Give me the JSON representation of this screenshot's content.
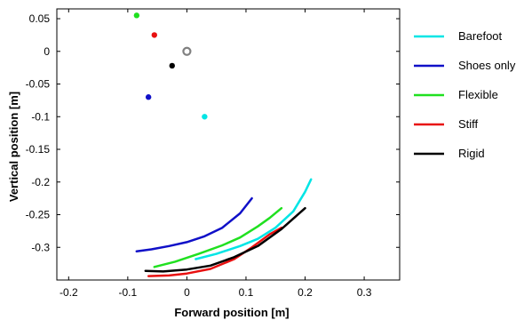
{
  "chart_data": {
    "type": "scatter",
    "xlabel": "Forward position [m]",
    "ylabel": "Vertical position [m]",
    "xlim": [
      -0.22,
      0.36
    ],
    "ylim": [
      -0.35,
      0.065
    ],
    "xticks": [
      -0.2,
      -0.1,
      0,
      0.1,
      0.2,
      0.3
    ],
    "yticks": [
      0.05,
      0,
      -0.05,
      -0.1,
      -0.15,
      -0.2,
      -0.25,
      -0.3
    ],
    "legend_position": "outside-right",
    "grid": false,
    "reference_point": {
      "x": 0.0,
      "y": 0.0,
      "color": "#808080",
      "marker": "open-circle"
    },
    "series": [
      {
        "name": "Barefoot",
        "color": "#00e5e5",
        "point": {
          "x": 0.03,
          "y": -0.1
        },
        "trajectory": {
          "x": [
            0.015,
            0.05,
            0.09,
            0.12,
            0.15,
            0.18,
            0.2,
            0.21
          ],
          "y": [
            -0.318,
            -0.31,
            -0.298,
            -0.287,
            -0.27,
            -0.245,
            -0.215,
            -0.196
          ]
        }
      },
      {
        "name": "Shoes only",
        "color": "#1010c8",
        "point": {
          "x": -0.065,
          "y": -0.07
        },
        "trajectory": {
          "x": [
            -0.085,
            -0.06,
            -0.03,
            0.0,
            0.03,
            0.06,
            0.09,
            0.11
          ],
          "y": [
            -0.306,
            -0.303,
            -0.298,
            -0.292,
            -0.283,
            -0.27,
            -0.248,
            -0.225
          ]
        }
      },
      {
        "name": "Flexible",
        "color": "#20e020",
        "point": {
          "x": -0.085,
          "y": 0.055
        },
        "trajectory": {
          "x": [
            -0.055,
            -0.02,
            0.02,
            0.06,
            0.09,
            0.12,
            0.14,
            0.16
          ],
          "y": [
            -0.33,
            -0.322,
            -0.31,
            -0.297,
            -0.285,
            -0.268,
            -0.255,
            -0.24
          ]
        }
      },
      {
        "name": "Stiff",
        "color": "#e81010",
        "point": {
          "x": -0.055,
          "y": 0.025
        },
        "trajectory": {
          "x": [
            -0.065,
            -0.03,
            0.0,
            0.04,
            0.08,
            0.11,
            0.14,
            0.16
          ],
          "y": [
            -0.344,
            -0.343,
            -0.34,
            -0.333,
            -0.318,
            -0.3,
            -0.28,
            -0.27
          ]
        }
      },
      {
        "name": "Rigid",
        "color": "#000000",
        "point": {
          "x": -0.025,
          "y": -0.022
        },
        "trajectory": {
          "x": [
            -0.07,
            -0.04,
            0.0,
            0.04,
            0.08,
            0.12,
            0.16,
            0.2
          ],
          "y": [
            -0.336,
            -0.337,
            -0.334,
            -0.328,
            -0.315,
            -0.298,
            -0.272,
            -0.24
          ]
        }
      }
    ]
  }
}
